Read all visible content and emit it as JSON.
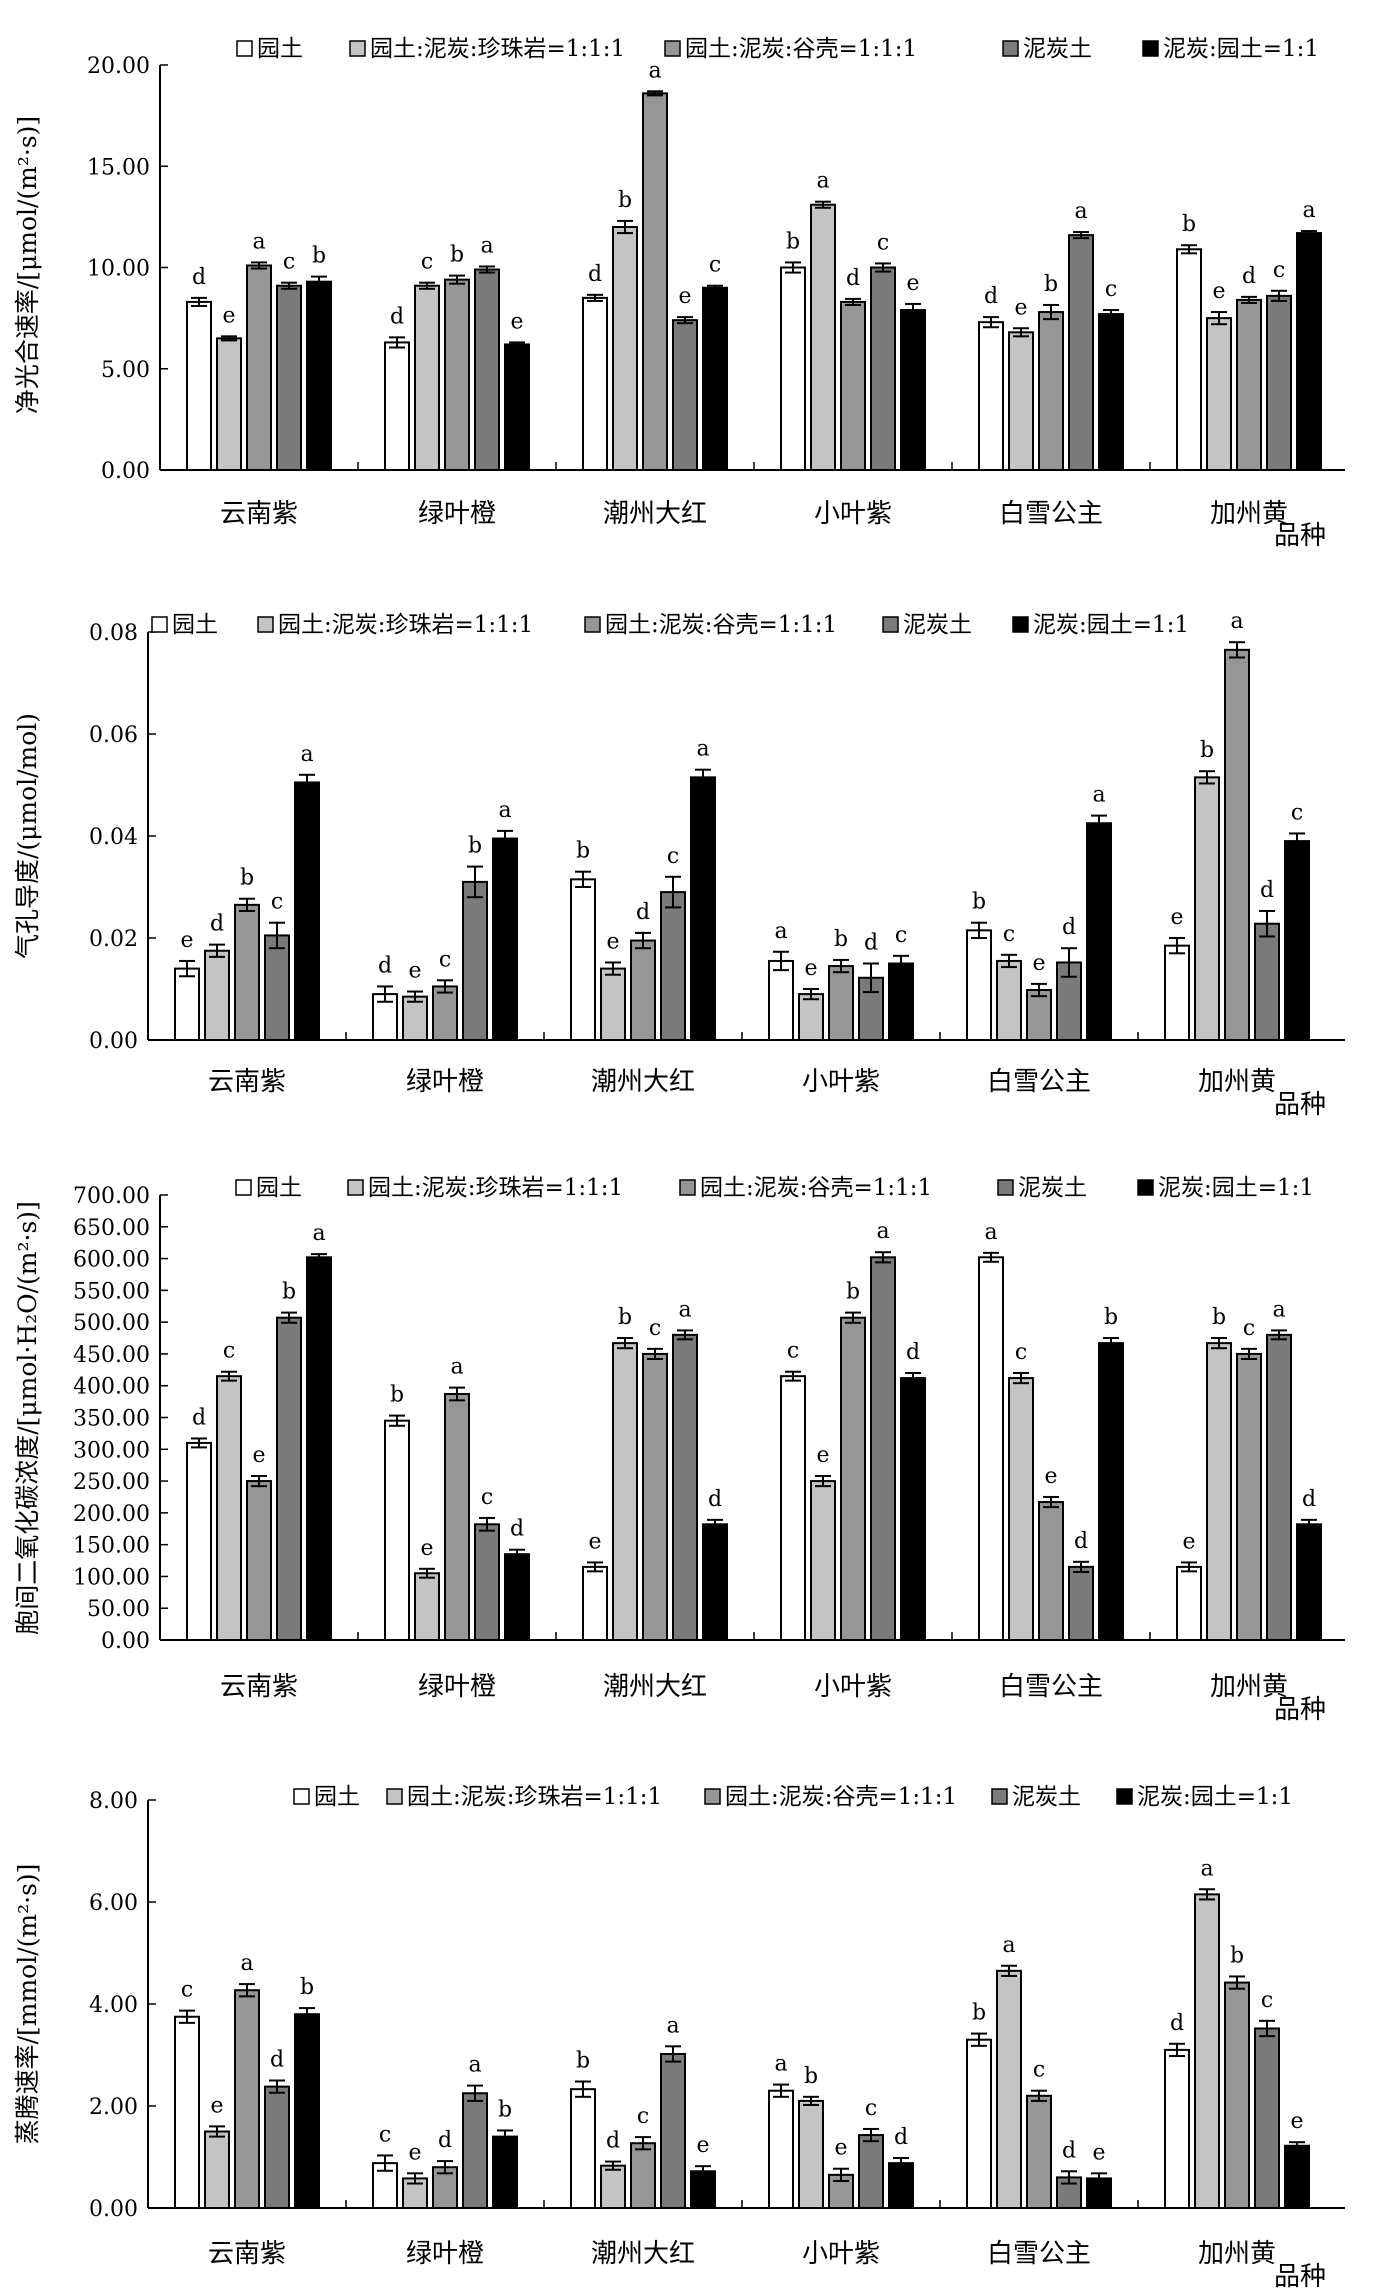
{
  "legend": [
    "园土",
    "园土:泥炭:珍珠岩=1:1:1",
    "园土:泥炭:谷壳=1:1:1",
    "泥炭土",
    "泥炭:园土=1:1"
  ],
  "series_colors": [
    "#ffffff",
    "#c4c4c4",
    "#969696",
    "#7a7a7a",
    "#000000"
  ],
  "chart_data": [
    {
      "type": "bar",
      "ylabel": "净光合速率/[μmol/(m²·s)]",
      "xlabel": "品种",
      "categories": [
        "云南紫",
        "绿叶橙",
        "潮州大红",
        "小叶紫",
        "白雪公主",
        "加州黄"
      ],
      "ylim": [
        0,
        20
      ],
      "yticks": [
        "0.00",
        "5.00",
        "10.00",
        "15.00",
        "20.00"
      ],
      "series": [
        {
          "name": "园土",
          "values": [
            8.3,
            6.3,
            8.5,
            10.0,
            7.3,
            10.9
          ],
          "errors": [
            0.2,
            0.25,
            0.15,
            0.25,
            0.25,
            0.2
          ],
          "letters": [
            "d",
            "d",
            "d",
            "b",
            "d",
            "b"
          ]
        },
        {
          "name": "园土:泥炭:珍珠岩=1:1:1",
          "values": [
            6.5,
            9.1,
            12.0,
            13.1,
            6.8,
            7.5
          ],
          "errors": [
            0.1,
            0.15,
            0.3,
            0.15,
            0.2,
            0.3
          ],
          "letters": [
            "e",
            "c",
            "b",
            "a",
            "e",
            "e"
          ]
        },
        {
          "name": "园土:泥炭:谷壳=1:1:1",
          "values": [
            10.1,
            9.4,
            18.6,
            8.3,
            7.8,
            8.4
          ],
          "errors": [
            0.15,
            0.2,
            0.1,
            0.15,
            0.35,
            0.15
          ],
          "letters": [
            "a",
            "b",
            "a",
            "d",
            "b",
            "d"
          ]
        },
        {
          "name": "泥炭土",
          "values": [
            9.1,
            9.9,
            7.4,
            10.0,
            11.6,
            8.6
          ],
          "errors": [
            0.15,
            0.15,
            0.15,
            0.2,
            0.15,
            0.25
          ],
          "letters": [
            "c",
            "a",
            "e",
            "c",
            "a",
            "c"
          ]
        },
        {
          "name": "泥炭:园土=1:1",
          "values": [
            9.3,
            6.2,
            9.0,
            7.9,
            7.7,
            11.7
          ],
          "errors": [
            0.25,
            0.1,
            0.1,
            0.3,
            0.2,
            0.1
          ],
          "letters": [
            "b",
            "e",
            "c",
            "e",
            "c",
            "a"
          ]
        }
      ]
    },
    {
      "type": "bar",
      "ylabel": "气孔导度/(μmol/mol)",
      "xlabel": "品种",
      "categories": [
        "云南紫",
        "绿叶橙",
        "潮州大红",
        "小叶紫",
        "白雪公主",
        "加州黄"
      ],
      "ylim": [
        0,
        0.08
      ],
      "yticks": [
        "0.00",
        "0.02",
        "0.04",
        "0.06",
        "0.08"
      ],
      "series": [
        {
          "name": "园土",
          "values": [
            0.014,
            0.009,
            0.0315,
            0.0155,
            0.0215,
            0.0185
          ],
          "errors": [
            0.0015,
            0.0015,
            0.0015,
            0.0018,
            0.0015,
            0.0015
          ],
          "letters": [
            "e",
            "d",
            "b",
            "a",
            "b",
            "e"
          ]
        },
        {
          "name": "园土:泥炭:珍珠岩=1:1:1",
          "values": [
            0.0175,
            0.0085,
            0.014,
            0.009,
            0.0155,
            0.0515
          ],
          "errors": [
            0.0012,
            0.001,
            0.0012,
            0.001,
            0.0012,
            0.0012
          ],
          "letters": [
            "d",
            "e",
            "e",
            "e",
            "c",
            "b"
          ]
        },
        {
          "name": "园土:泥炭:谷壳=1:1:1",
          "values": [
            0.0265,
            0.0105,
            0.0195,
            0.0145,
            0.0098,
            0.0765
          ],
          "errors": [
            0.0012,
            0.0012,
            0.0015,
            0.0012,
            0.0012,
            0.0015
          ],
          "letters": [
            "b",
            "c",
            "d",
            "b",
            "e",
            "a"
          ]
        },
        {
          "name": "泥炭土",
          "values": [
            0.0205,
            0.031,
            0.029,
            0.0122,
            0.0152,
            0.0228
          ],
          "errors": [
            0.0025,
            0.003,
            0.003,
            0.0028,
            0.0028,
            0.0025
          ],
          "letters": [
            "c",
            "b",
            "c",
            "d",
            "d",
            "d"
          ]
        },
        {
          "name": "泥炭:园土=1:1",
          "values": [
            0.0505,
            0.0395,
            0.0515,
            0.015,
            0.0425,
            0.039
          ],
          "errors": [
            0.0015,
            0.0015,
            0.0015,
            0.0015,
            0.0015,
            0.0015
          ],
          "letters": [
            "a",
            "a",
            "a",
            "c",
            "a",
            "c"
          ]
        }
      ]
    },
    {
      "type": "bar",
      "ylabel": "胞间二氧化碳浓度/[μmol·H₂O/(m²·s)]",
      "xlabel": "品种",
      "categories": [
        "云南紫",
        "绿叶橙",
        "潮州大红",
        "小叶紫",
        "白雪公主",
        "加州黄"
      ],
      "ylim": [
        0,
        700
      ],
      "yticks": [
        "0.00",
        "50.00",
        "100.00",
        "150.00",
        "200.00",
        "250.00",
        "300.00",
        "350.00",
        "400.00",
        "450.00",
        "500.00",
        "550.00",
        "600.00",
        "650.00",
        "700.00"
      ],
      "series": [
        {
          "name": "园土",
          "values": [
            310,
            345,
            115,
            415,
            602,
            115
          ],
          "errors": [
            7,
            8,
            7,
            7,
            7,
            7
          ],
          "letters": [
            "d",
            "b",
            "e",
            "c",
            "a",
            "e"
          ]
        },
        {
          "name": "园土:泥炭:珍珠岩=1:1:1",
          "values": [
            415,
            105,
            467,
            250,
            412,
            467
          ],
          "errors": [
            7,
            7,
            8,
            8,
            8,
            8
          ],
          "letters": [
            "c",
            "e",
            "b",
            "e",
            "c",
            "b"
          ]
        },
        {
          "name": "园土:泥炭:谷壳=1:1:1",
          "values": [
            250,
            387,
            450,
            507,
            217,
            450
          ],
          "errors": [
            8,
            10,
            8,
            8,
            8,
            8
          ],
          "letters": [
            "e",
            "a",
            "c",
            "b",
            "e",
            "c"
          ]
        },
        {
          "name": "泥炭土",
          "values": [
            507,
            182,
            480,
            602,
            115,
            480
          ],
          "errors": [
            8,
            10,
            7,
            8,
            8,
            7
          ],
          "letters": [
            "b",
            "c",
            "a",
            "a",
            "d",
            "a"
          ]
        },
        {
          "name": "泥炭:园土=1:1",
          "values": [
            602,
            135,
            182,
            412,
            467,
            182
          ],
          "errors": [
            5,
            7,
            7,
            8,
            8,
            7
          ],
          "letters": [
            "a",
            "d",
            "d",
            "d",
            "b",
            "d"
          ]
        }
      ]
    },
    {
      "type": "bar",
      "ylabel": "蒸腾速率/[mmol/(m²·s)]",
      "xlabel": "品种",
      "categories": [
        "云南紫",
        "绿叶橙",
        "潮州大红",
        "小叶紫",
        "白雪公主",
        "加州黄"
      ],
      "ylim": [
        0,
        8
      ],
      "yticks": [
        "0.00",
        "2.00",
        "4.00",
        "6.00",
        "8.00"
      ],
      "series": [
        {
          "name": "园土",
          "values": [
            3.75,
            0.88,
            2.33,
            2.3,
            3.3,
            3.1
          ],
          "errors": [
            0.12,
            0.15,
            0.15,
            0.12,
            0.12,
            0.12
          ],
          "letters": [
            "c",
            "c",
            "b",
            "a",
            "b",
            "d"
          ]
        },
        {
          "name": "园土:泥炭:珍珠岩=1:1:1",
          "values": [
            1.5,
            0.58,
            0.83,
            2.1,
            4.65,
            6.15
          ],
          "errors": [
            0.1,
            0.1,
            0.08,
            0.08,
            0.1,
            0.1
          ],
          "letters": [
            "e",
            "e",
            "d",
            "b",
            "a",
            "a"
          ]
        },
        {
          "name": "园土:泥炭:谷壳=1:1:1",
          "values": [
            4.27,
            0.8,
            1.27,
            0.65,
            2.2,
            4.42
          ],
          "errors": [
            0.12,
            0.12,
            0.12,
            0.12,
            0.1,
            0.12
          ],
          "letters": [
            "a",
            "d",
            "c",
            "e",
            "c",
            "b"
          ]
        },
        {
          "name": "泥炭土",
          "values": [
            2.38,
            2.25,
            3.02,
            1.43,
            0.6,
            3.52
          ],
          "errors": [
            0.12,
            0.15,
            0.15,
            0.12,
            0.12,
            0.15
          ],
          "letters": [
            "d",
            "a",
            "a",
            "c",
            "d",
            "c"
          ]
        },
        {
          "name": "泥炭:园土=1:1",
          "values": [
            3.8,
            1.4,
            0.72,
            0.88,
            0.58,
            1.22
          ],
          "errors": [
            0.12,
            0.12,
            0.1,
            0.1,
            0.1,
            0.07
          ],
          "letters": [
            "b",
            "b",
            "e",
            "d",
            "e",
            "e"
          ]
        }
      ]
    }
  ]
}
